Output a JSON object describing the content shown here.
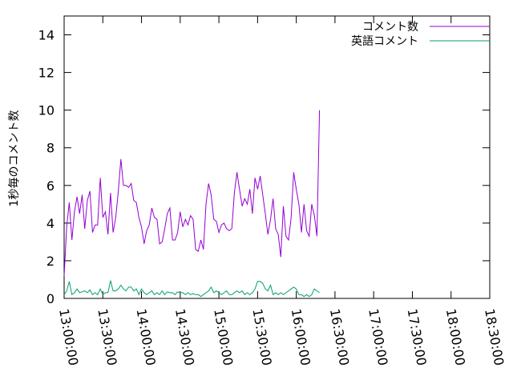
{
  "chart_data": {
    "type": "line",
    "ylabel": "1秒毎のコメント数",
    "xlabel": "",
    "title": "",
    "ylim": [
      0,
      15
    ],
    "y_ticks": [
      "0",
      "2",
      "4",
      "6",
      "8",
      "10",
      "12",
      "14"
    ],
    "x_ticks": [
      "13:00:00",
      "13:30:00",
      "14:00:00",
      "14:30:00",
      "15:00:00",
      "15:30:00",
      "16:00:00",
      "16:30:00",
      "17:00:00",
      "17:30:00",
      "18:00:00",
      "18:30:00"
    ],
    "x_range": [
      "13:00:00",
      "18:30:00"
    ],
    "grid": false,
    "legend_position": "top-right",
    "series": [
      {
        "name": "コメント数",
        "color": "#9400d3",
        "points": [
          [
            "13:00:00",
            1.2
          ],
          [
            "13:02:00",
            3.8
          ],
          [
            "13:04:00",
            5.1
          ],
          [
            "13:06:00",
            3.1
          ],
          [
            "13:08:00",
            4.6
          ],
          [
            "13:10:00",
            5.4
          ],
          [
            "13:12:00",
            4.5
          ],
          [
            "13:14:00",
            5.5
          ],
          [
            "13:16:00",
            3.7
          ],
          [
            "13:18:00",
            5.2
          ],
          [
            "13:20:00",
            5.7
          ],
          [
            "13:22:00",
            3.5
          ],
          [
            "13:24:00",
            3.9
          ],
          [
            "13:26:00",
            3.9
          ],
          [
            "13:28:00",
            6.4
          ],
          [
            "13:30:00",
            4.3
          ],
          [
            "13:32:00",
            4.6
          ],
          [
            "13:34:00",
            3.4
          ],
          [
            "13:36:00",
            5.6
          ],
          [
            "13:38:00",
            3.5
          ],
          [
            "13:40:00",
            4.3
          ],
          [
            "13:42:00",
            5.7
          ],
          [
            "13:44:00",
            7.4
          ],
          [
            "13:46:00",
            6.0
          ],
          [
            "13:48:00",
            6.0
          ],
          [
            "13:50:00",
            5.9
          ],
          [
            "13:52:00",
            6.1
          ],
          [
            "13:54:00",
            5.2
          ],
          [
            "13:56:00",
            5.1
          ],
          [
            "13:58:00",
            4.3
          ],
          [
            "14:00:00",
            3.8
          ],
          [
            "14:02:00",
            2.9
          ],
          [
            "14:04:00",
            3.6
          ],
          [
            "14:06:00",
            3.9
          ],
          [
            "14:08:00",
            4.8
          ],
          [
            "14:10:00",
            4.3
          ],
          [
            "14:12:00",
            4.2
          ],
          [
            "14:14:00",
            2.9
          ],
          [
            "14:16:00",
            3.0
          ],
          [
            "14:18:00",
            3.7
          ],
          [
            "14:20:00",
            4.5
          ],
          [
            "14:22:00",
            4.8
          ],
          [
            "14:24:00",
            3.1
          ],
          [
            "14:26:00",
            3.1
          ],
          [
            "14:28:00",
            3.5
          ],
          [
            "14:30:00",
            4.6
          ],
          [
            "14:32:00",
            3.8
          ],
          [
            "14:34:00",
            4.2
          ],
          [
            "14:36:00",
            3.9
          ],
          [
            "14:38:00",
            4.4
          ],
          [
            "14:40:00",
            4.2
          ],
          [
            "14:42:00",
            2.6
          ],
          [
            "14:44:00",
            2.5
          ],
          [
            "14:46:00",
            3.1
          ],
          [
            "14:48:00",
            2.6
          ],
          [
            "14:50:00",
            5.0
          ],
          [
            "14:52:00",
            6.1
          ],
          [
            "14:54:00",
            5.5
          ],
          [
            "14:56:00",
            4.2
          ],
          [
            "14:58:00",
            4.1
          ],
          [
            "15:00:00",
            3.5
          ],
          [
            "15:02:00",
            3.9
          ],
          [
            "15:04:00",
            4.0
          ],
          [
            "15:06:00",
            3.7
          ],
          [
            "15:08:00",
            3.6
          ],
          [
            "15:10:00",
            3.7
          ],
          [
            "15:12:00",
            5.6
          ],
          [
            "15:14:00",
            6.7
          ],
          [
            "15:16:00",
            5.8
          ],
          [
            "15:18:00",
            4.9
          ],
          [
            "15:20:00",
            5.3
          ],
          [
            "15:22:00",
            5.0
          ],
          [
            "15:24:00",
            5.8
          ],
          [
            "15:26:00",
            4.5
          ],
          [
            "15:28:00",
            6.4
          ],
          [
            "15:30:00",
            5.8
          ],
          [
            "15:32:00",
            6.5
          ],
          [
            "15:34:00",
            5.5
          ],
          [
            "15:36:00",
            4.5
          ],
          [
            "15:38:00",
            3.4
          ],
          [
            "15:40:00",
            4.2
          ],
          [
            "15:42:00",
            5.3
          ],
          [
            "15:44:00",
            3.7
          ],
          [
            "15:46:00",
            3.4
          ],
          [
            "15:48:00",
            2.2
          ],
          [
            "15:50:00",
            4.9
          ],
          [
            "15:52:00",
            3.3
          ],
          [
            "15:54:00",
            3.1
          ],
          [
            "15:56:00",
            4.3
          ],
          [
            "15:58:00",
            6.7
          ],
          [
            "16:00:00",
            5.8
          ],
          [
            "16:02:00",
            5.0
          ],
          [
            "16:04:00",
            3.5
          ],
          [
            "16:06:00",
            5.0
          ],
          [
            "16:08:00",
            3.6
          ],
          [
            "16:10:00",
            3.3
          ],
          [
            "16:12:00",
            5.0
          ],
          [
            "16:14:00",
            4.4
          ],
          [
            "16:16:00",
            3.3
          ],
          [
            "16:18:00",
            10.0
          ]
        ]
      },
      {
        "name": "英語コメント",
        "color": "#009e73",
        "points": [
          [
            "13:00:00",
            0.2
          ],
          [
            "13:02:00",
            0.4
          ],
          [
            "13:04:00",
            0.9
          ],
          [
            "13:06:00",
            0.2
          ],
          [
            "13:08:00",
            0.3
          ],
          [
            "13:10:00",
            0.5
          ],
          [
            "13:12:00",
            0.3
          ],
          [
            "13:14:00",
            0.35
          ],
          [
            "13:16:00",
            0.4
          ],
          [
            "13:18:00",
            0.3
          ],
          [
            "13:20:00",
            0.45
          ],
          [
            "13:22:00",
            0.2
          ],
          [
            "13:24:00",
            0.3
          ],
          [
            "13:26:00",
            0.2
          ],
          [
            "13:28:00",
            0.5
          ],
          [
            "13:30:00",
            0.2
          ],
          [
            "13:32:00",
            0.3
          ],
          [
            "13:34:00",
            0.3
          ],
          [
            "13:36:00",
            0.95
          ],
          [
            "13:38:00",
            0.4
          ],
          [
            "13:40:00",
            0.4
          ],
          [
            "13:42:00",
            0.5
          ],
          [
            "13:44:00",
            0.7
          ],
          [
            "13:46:00",
            0.5
          ],
          [
            "13:48:00",
            0.4
          ],
          [
            "13:50:00",
            0.6
          ],
          [
            "13:52:00",
            0.6
          ],
          [
            "13:54:00",
            0.4
          ],
          [
            "13:56:00",
            0.5
          ],
          [
            "13:58:00",
            0.2
          ],
          [
            "14:00:00",
            0.5
          ],
          [
            "14:02:00",
            0.3
          ],
          [
            "14:04:00",
            0.2
          ],
          [
            "14:06:00",
            0.3
          ],
          [
            "14:08:00",
            0.4
          ],
          [
            "14:10:00",
            0.2
          ],
          [
            "14:12:00",
            0.3
          ],
          [
            "14:14:00",
            0.2
          ],
          [
            "14:16:00",
            0.4
          ],
          [
            "14:18:00",
            0.2
          ],
          [
            "14:20:00",
            0.35
          ],
          [
            "14:22:00",
            0.3
          ],
          [
            "14:24:00",
            0.3
          ],
          [
            "14:26:00",
            0.2
          ],
          [
            "14:28:00",
            0.35
          ],
          [
            "14:30:00",
            0.3
          ],
          [
            "14:32:00",
            0.3
          ],
          [
            "14:34:00",
            0.2
          ],
          [
            "14:36:00",
            0.3
          ],
          [
            "14:38:00",
            0.2
          ],
          [
            "14:40:00",
            0.25
          ],
          [
            "14:42:00",
            0.2
          ],
          [
            "14:44:00",
            0.2
          ],
          [
            "14:46:00",
            0.1
          ],
          [
            "14:48:00",
            0.2
          ],
          [
            "14:50:00",
            0.3
          ],
          [
            "14:52:00",
            0.4
          ],
          [
            "14:54:00",
            0.6
          ],
          [
            "14:56:00",
            0.3
          ],
          [
            "14:58:00",
            0.4
          ],
          [
            "15:00:00",
            0.3
          ],
          [
            "15:02:00",
            0.2
          ],
          [
            "15:04:00",
            0.3
          ],
          [
            "15:06:00",
            0.4
          ],
          [
            "15:08:00",
            0.2
          ],
          [
            "15:10:00",
            0.2
          ],
          [
            "15:12:00",
            0.3
          ],
          [
            "15:14:00",
            0.4
          ],
          [
            "15:16:00",
            0.3
          ],
          [
            "15:18:00",
            0.4
          ],
          [
            "15:20:00",
            0.2
          ],
          [
            "15:22:00",
            0.3
          ],
          [
            "15:24:00",
            0.2
          ],
          [
            "15:26:00",
            0.3
          ],
          [
            "15:28:00",
            0.5
          ],
          [
            "15:30:00",
            0.9
          ],
          [
            "15:32:00",
            0.9
          ],
          [
            "15:34:00",
            0.8
          ],
          [
            "15:36:00",
            0.5
          ],
          [
            "15:38:00",
            0.4
          ],
          [
            "15:40:00",
            0.7
          ],
          [
            "15:42:00",
            0.2
          ],
          [
            "15:44:00",
            0.3
          ],
          [
            "15:46:00",
            0.2
          ],
          [
            "15:48:00",
            0.3
          ],
          [
            "15:50:00",
            0.2
          ],
          [
            "15:52:00",
            0.3
          ],
          [
            "15:54:00",
            0.4
          ],
          [
            "15:56:00",
            0.5
          ],
          [
            "15:58:00",
            0.6
          ],
          [
            "16:00:00",
            0.5
          ],
          [
            "16:02:00",
            0.2
          ],
          [
            "16:04:00",
            0.2
          ],
          [
            "16:06:00",
            0.1
          ],
          [
            "16:08:00",
            0.2
          ],
          [
            "16:10:00",
            0.1
          ],
          [
            "16:12:00",
            0.2
          ],
          [
            "16:14:00",
            0.5
          ],
          [
            "16:16:00",
            0.4
          ],
          [
            "16:18:00",
            0.3
          ]
        ]
      }
    ]
  }
}
